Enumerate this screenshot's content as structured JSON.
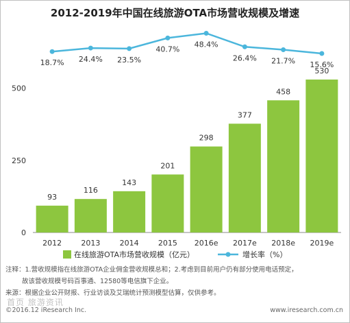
{
  "title": "2012-2019年中国在线旅游OTA市场营收规模及增速",
  "colors": {
    "bar": "#8dc63f",
    "line": "#4bb6dc"
  },
  "chart_data": {
    "type": "bar",
    "categories": [
      "2012",
      "2013",
      "2014",
      "2015",
      "2016e",
      "2017e",
      "2018e",
      "2019e"
    ],
    "series": [
      {
        "name": "在线旅游OTA市场营收规模（亿元）",
        "type": "bar",
        "values": [
          93,
          116,
          143,
          201,
          298,
          377,
          458,
          530
        ]
      },
      {
        "name": "增长率（%）",
        "type": "line",
        "values": [
          18.7,
          24.4,
          23.5,
          40.7,
          48.4,
          26.4,
          21.7,
          15.6
        ],
        "labels": [
          "18.7%",
          "24.4%",
          "23.5%",
          "40.7%",
          "48.4%",
          "26.4%",
          "21.7%",
          "15.6%"
        ]
      }
    ],
    "yticks": [
      0,
      250,
      500
    ],
    "ylim": [
      0,
      600
    ],
    "legend_position": "bottom"
  },
  "notes": [
    "注释：1.营收规模指在线旅游OTA企业佣金营收规模总和；2.考虑到目前用户仍有部分使用电话预定，",
    "故该营收规模号码百事通、12580等电信旗下企业。",
    "来源：根据企业公开财报、行业访谈及艾瑞统计预测模型估算，仅供参考。"
  ],
  "footer_left": "©2016.12 iResearch Inc.",
  "footer_right": "www.iresearch.com.cn",
  "watermark": "首页 旅游资讯"
}
